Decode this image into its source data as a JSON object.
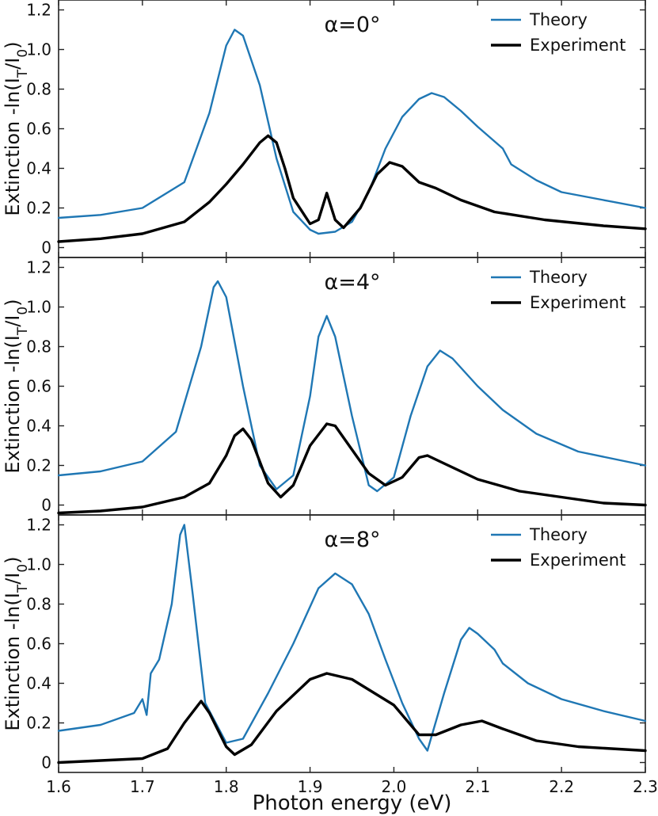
{
  "chart_data": {
    "type": "line",
    "xlabel": "Photon energy (eV)",
    "xlim": [
      1.6,
      2.3
    ],
    "x_ticks": [
      "1.6",
      "1.7",
      "1.8",
      "1.9",
      "2.0",
      "2.1",
      "2.2",
      "2.3"
    ],
    "ylim": [
      -0.05,
      1.25
    ],
    "y_ticks": [
      "0",
      "0.2",
      "0.4",
      "0.6",
      "0.8",
      "1.0",
      "1.2"
    ],
    "ylabel": {
      "prefix": "Extinction -ln(I",
      "sub1": "T",
      "mid": "/I",
      "sub2": "0",
      "suffix": ")"
    },
    "grid": false,
    "legend_position": "top-right",
    "colors": {
      "Theory": "#1f77b4",
      "Experiment": "#000000"
    },
    "panels": [
      {
        "title": "α=0°",
        "series": [
          {
            "name": "Theory",
            "points": [
              [
                1.6,
                0.15
              ],
              [
                1.65,
                0.165
              ],
              [
                1.7,
                0.2
              ],
              [
                1.75,
                0.33
              ],
              [
                1.78,
                0.68
              ],
              [
                1.8,
                1.02
              ],
              [
                1.81,
                1.1
              ],
              [
                1.82,
                1.07
              ],
              [
                1.84,
                0.82
              ],
              [
                1.86,
                0.45
              ],
              [
                1.88,
                0.18
              ],
              [
                1.9,
                0.09
              ],
              [
                1.91,
                0.07
              ],
              [
                1.93,
                0.08
              ],
              [
                1.95,
                0.13
              ],
              [
                1.97,
                0.28
              ],
              [
                1.99,
                0.5
              ],
              [
                2.01,
                0.66
              ],
              [
                2.03,
                0.75
              ],
              [
                2.045,
                0.78
              ],
              [
                2.06,
                0.76
              ],
              [
                2.08,
                0.69
              ],
              [
                2.1,
                0.61
              ],
              [
                2.13,
                0.5
              ],
              [
                2.14,
                0.42
              ],
              [
                2.17,
                0.34
              ],
              [
                2.2,
                0.28
              ],
              [
                2.25,
                0.24
              ],
              [
                2.3,
                0.2
              ]
            ]
          },
          {
            "name": "Experiment",
            "points": [
              [
                1.6,
                0.03
              ],
              [
                1.65,
                0.045
              ],
              [
                1.7,
                0.07
              ],
              [
                1.75,
                0.13
              ],
              [
                1.78,
                0.23
              ],
              [
                1.8,
                0.32
              ],
              [
                1.82,
                0.42
              ],
              [
                1.84,
                0.53
              ],
              [
                1.85,
                0.565
              ],
              [
                1.86,
                0.53
              ],
              [
                1.87,
                0.4
              ],
              [
                1.88,
                0.25
              ],
              [
                1.9,
                0.12
              ],
              [
                1.91,
                0.14
              ],
              [
                1.92,
                0.275
              ],
              [
                1.93,
                0.14
              ],
              [
                1.94,
                0.1
              ],
              [
                1.96,
                0.2
              ],
              [
                1.98,
                0.37
              ],
              [
                1.995,
                0.43
              ],
              [
                2.01,
                0.41
              ],
              [
                2.03,
                0.33
              ],
              [
                2.05,
                0.3
              ],
              [
                2.08,
                0.24
              ],
              [
                2.12,
                0.18
              ],
              [
                2.18,
                0.14
              ],
              [
                2.25,
                0.11
              ],
              [
                2.3,
                0.095
              ]
            ]
          }
        ]
      },
      {
        "title": "α=4°",
        "series": [
          {
            "name": "Theory",
            "points": [
              [
                1.6,
                0.15
              ],
              [
                1.65,
                0.17
              ],
              [
                1.7,
                0.22
              ],
              [
                1.74,
                0.37
              ],
              [
                1.77,
                0.8
              ],
              [
                1.785,
                1.1
              ],
              [
                1.79,
                1.13
              ],
              [
                1.8,
                1.05
              ],
              [
                1.82,
                0.6
              ],
              [
                1.84,
                0.2
              ],
              [
                1.86,
                0.08
              ],
              [
                1.88,
                0.15
              ],
              [
                1.9,
                0.55
              ],
              [
                1.91,
                0.85
              ],
              [
                1.92,
                0.955
              ],
              [
                1.93,
                0.85
              ],
              [
                1.95,
                0.45
              ],
              [
                1.97,
                0.1
              ],
              [
                1.98,
                0.07
              ],
              [
                2.0,
                0.14
              ],
              [
                2.02,
                0.45
              ],
              [
                2.04,
                0.7
              ],
              [
                2.055,
                0.78
              ],
              [
                2.07,
                0.74
              ],
              [
                2.1,
                0.6
              ],
              [
                2.13,
                0.48
              ],
              [
                2.17,
                0.36
              ],
              [
                2.22,
                0.27
              ],
              [
                2.3,
                0.2
              ]
            ]
          },
          {
            "name": "Experiment",
            "points": [
              [
                1.6,
                -0.04
              ],
              [
                1.65,
                -0.03
              ],
              [
                1.7,
                -0.01
              ],
              [
                1.75,
                0.04
              ],
              [
                1.78,
                0.11
              ],
              [
                1.8,
                0.25
              ],
              [
                1.81,
                0.35
              ],
              [
                1.82,
                0.385
              ],
              [
                1.83,
                0.33
              ],
              [
                1.85,
                0.11
              ],
              [
                1.865,
                0.04
              ],
              [
                1.88,
                0.1
              ],
              [
                1.9,
                0.3
              ],
              [
                1.92,
                0.41
              ],
              [
                1.93,
                0.4
              ],
              [
                1.95,
                0.28
              ],
              [
                1.97,
                0.16
              ],
              [
                1.99,
                0.1
              ],
              [
                2.01,
                0.14
              ],
              [
                2.03,
                0.24
              ],
              [
                2.04,
                0.25
              ],
              [
                2.06,
                0.21
              ],
              [
                2.1,
                0.13
              ],
              [
                2.15,
                0.07
              ],
              [
                2.2,
                0.04
              ],
              [
                2.25,
                0.01
              ],
              [
                2.3,
                0.0
              ]
            ]
          }
        ]
      },
      {
        "title": "α=8°",
        "series": [
          {
            "name": "Theory",
            "points": [
              [
                1.6,
                0.16
              ],
              [
                1.65,
                0.19
              ],
              [
                1.69,
                0.25
              ],
              [
                1.7,
                0.32
              ],
              [
                1.705,
                0.24
              ],
              [
                1.71,
                0.45
              ],
              [
                1.72,
                0.52
              ],
              [
                1.735,
                0.8
              ],
              [
                1.745,
                1.15
              ],
              [
                1.75,
                1.2
              ],
              [
                1.76,
                0.85
              ],
              [
                1.775,
                0.3
              ],
              [
                1.8,
                0.1
              ],
              [
                1.82,
                0.12
              ],
              [
                1.85,
                0.35
              ],
              [
                1.88,
                0.6
              ],
              [
                1.91,
                0.88
              ],
              [
                1.93,
                0.955
              ],
              [
                1.95,
                0.9
              ],
              [
                1.97,
                0.75
              ],
              [
                1.99,
                0.52
              ],
              [
                2.01,
                0.3
              ],
              [
                2.03,
                0.12
              ],
              [
                2.04,
                0.06
              ],
              [
                2.06,
                0.35
              ],
              [
                2.08,
                0.62
              ],
              [
                2.09,
                0.68
              ],
              [
                2.1,
                0.65
              ],
              [
                2.12,
                0.57
              ],
              [
                2.13,
                0.5
              ],
              [
                2.16,
                0.4
              ],
              [
                2.2,
                0.32
              ],
              [
                2.25,
                0.26
              ],
              [
                2.3,
                0.21
              ]
            ]
          },
          {
            "name": "Experiment",
            "points": [
              [
                1.6,
                0.0
              ],
              [
                1.65,
                0.01
              ],
              [
                1.7,
                0.02
              ],
              [
                1.73,
                0.07
              ],
              [
                1.75,
                0.2
              ],
              [
                1.77,
                0.31
              ],
              [
                1.78,
                0.25
              ],
              [
                1.8,
                0.08
              ],
              [
                1.81,
                0.04
              ],
              [
                1.83,
                0.09
              ],
              [
                1.86,
                0.26
              ],
              [
                1.9,
                0.42
              ],
              [
                1.92,
                0.45
              ],
              [
                1.95,
                0.42
              ],
              [
                2.0,
                0.29
              ],
              [
                2.03,
                0.14
              ],
              [
                2.05,
                0.14
              ],
              [
                2.08,
                0.19
              ],
              [
                2.105,
                0.21
              ],
              [
                2.13,
                0.17
              ],
              [
                2.17,
                0.11
              ],
              [
                2.22,
                0.08
              ],
              [
                2.3,
                0.06
              ]
            ]
          }
        ]
      }
    ]
  }
}
